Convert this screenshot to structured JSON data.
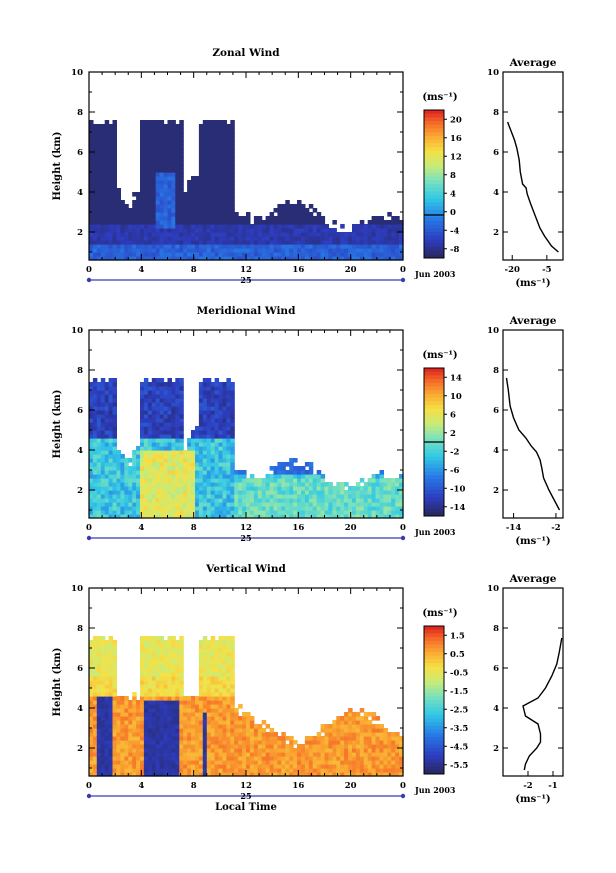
{
  "chart_data": [
    {
      "type": "heatmap",
      "title": "Zonal Wind",
      "xlabel": "",
      "ylabel": "Height (km)",
      "xlim": [
        0,
        24
      ],
      "ylim": [
        0.6,
        10
      ],
      "x_ticks": [
        "0",
        "4",
        "8",
        "12",
        "16",
        "20",
        "0"
      ],
      "y_ticks": [
        "2",
        "4",
        "6",
        "8",
        "10"
      ],
      "date_label": "25",
      "month_label": "Jun 2003",
      "colorbar": {
        "unit": "(ms⁻¹)",
        "range": [
          -9,
          22
        ],
        "ticks": [
          "20",
          "16",
          "12",
          "8",
          "4",
          "0",
          "-4",
          "-8"
        ],
        "marker_value": 0
      },
      "profile": {
        "title": "Average",
        "xlabel": "(ms⁻¹)",
        "x_ticks": [
          "-20",
          "-5"
        ],
        "xlim": [
          -24,
          2
        ],
        "y_ticks": [
          "2",
          "4",
          "6",
          "8",
          "10"
        ],
        "points": [
          [
            -22,
            7.5
          ],
          [
            -21,
            7.2
          ],
          [
            -19,
            6.6
          ],
          [
            -18,
            6.2
          ],
          [
            -17,
            5.6
          ],
          [
            -16.5,
            5.0
          ],
          [
            -15.5,
            4.4
          ],
          [
            -14,
            4.2
          ],
          [
            -13.5,
            3.9
          ],
          [
            -12,
            3.4
          ],
          [
            -10,
            2.8
          ],
          [
            -8,
            2.2
          ],
          [
            -6,
            1.8
          ],
          [
            -3,
            1.3
          ],
          [
            0,
            1.0
          ]
        ]
      }
    },
    {
      "type": "heatmap",
      "title": "Meridional Wind",
      "xlabel": "",
      "ylabel": "Height (km)",
      "xlim": [
        0,
        24
      ],
      "ylim": [
        0.6,
        10
      ],
      "x_ticks": [
        "0",
        "4",
        "8",
        "12",
        "16",
        "20",
        "0"
      ],
      "y_ticks": [
        "2",
        "4",
        "6",
        "8",
        "10"
      ],
      "date_label": "25",
      "month_label": "Jun 2003",
      "colorbar": {
        "unit": "(ms⁻¹)",
        "range": [
          -16,
          16
        ],
        "ticks": [
          "14",
          "10",
          "6",
          "2",
          "-2",
          "-6",
          "-10",
          "-14"
        ],
        "marker_value": 0
      },
      "profile": {
        "title": "Average",
        "xlabel": "(ms⁻¹)",
        "x_ticks": [
          "-14",
          "-2"
        ],
        "xlim": [
          -17,
          0
        ],
        "y_ticks": [
          "2",
          "4",
          "6",
          "8",
          "10"
        ],
        "points": [
          [
            -16,
            7.6
          ],
          [
            -15.5,
            7.0
          ],
          [
            -15,
            6.2
          ],
          [
            -14,
            5.6
          ],
          [
            -12.5,
            5.0
          ],
          [
            -10.5,
            4.6
          ],
          [
            -9,
            4.2
          ],
          [
            -7.5,
            3.9
          ],
          [
            -6.5,
            3.5
          ],
          [
            -6,
            3.1
          ],
          [
            -5.5,
            2.6
          ],
          [
            -4,
            2.0
          ],
          [
            -2.5,
            1.5
          ],
          [
            -1,
            1.0
          ]
        ]
      }
    },
    {
      "type": "heatmap",
      "title": "Vertical Wind",
      "xlabel": "Local Time",
      "ylabel": "Height (km)",
      "xlim": [
        0,
        24
      ],
      "ylim": [
        0.6,
        10
      ],
      "x_ticks": [
        "0",
        "4",
        "8",
        "12",
        "16",
        "20",
        "0"
      ],
      "y_ticks": [
        "2",
        "4",
        "6",
        "8",
        "10"
      ],
      "date_label": "25",
      "month_label": "Jun 2003",
      "colorbar": {
        "unit": "(ms⁻¹)",
        "range": [
          -6.5,
          2
        ],
        "ticks": [
          "1.5",
          "0.5",
          "-0.5",
          "-1.5",
          "-2.5",
          "-3.5",
          "-4.5",
          "-5.5"
        ]
      },
      "profile": {
        "title": "Average",
        "xlabel": "(ms⁻¹)",
        "x_ticks": [
          "-2",
          "-1"
        ],
        "xlim": [
          -3,
          -0.6
        ],
        "y_ticks": [
          "2",
          "4",
          "6",
          "8",
          "10"
        ],
        "points": [
          [
            -0.65,
            7.5
          ],
          [
            -0.75,
            6.8
          ],
          [
            -0.85,
            6.2
          ],
          [
            -1.05,
            5.6
          ],
          [
            -1.3,
            5.0
          ],
          [
            -1.6,
            4.5
          ],
          [
            -2.2,
            4.1
          ],
          [
            -2.1,
            3.6
          ],
          [
            -1.6,
            3.2
          ],
          [
            -1.5,
            2.7
          ],
          [
            -1.5,
            2.3
          ],
          [
            -1.65,
            2.0
          ],
          [
            -1.95,
            1.6
          ],
          [
            -2.1,
            1.2
          ],
          [
            -2.15,
            0.9
          ]
        ]
      }
    }
  ]
}
